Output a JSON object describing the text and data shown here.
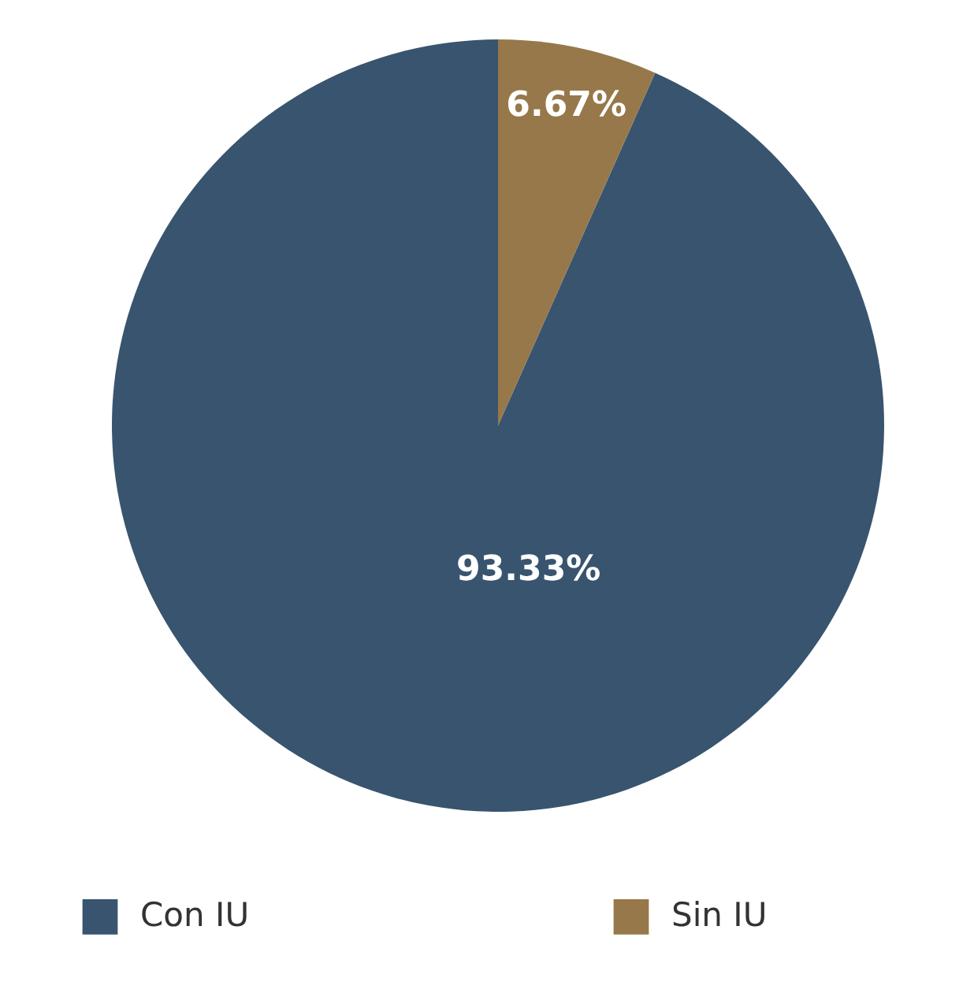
{
  "chart_data": {
    "type": "pie",
    "categories": [
      "Con IU",
      "Sin IU"
    ],
    "values": [
      93.33,
      6.67
    ],
    "colors": [
      "#38546f",
      "#97784a"
    ],
    "value_labels": [
      "93.33%",
      "6.67%"
    ],
    "legend": "bottom"
  }
}
